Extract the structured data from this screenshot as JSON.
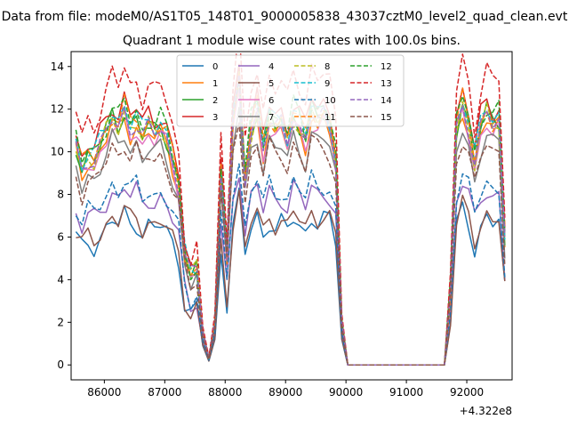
{
  "chart_data": {
    "type": "line",
    "suptitle": "Data from file: modeM0/AS1T05_148T01_9000005838_43037cztM0_level2_quad_clean.evt",
    "title": "Quadrant 1 module wise count rates with 100.0s bins.",
    "xlabel": "",
    "ylabel": "",
    "x_offset_label": "+4.322e8",
    "xlim": [
      85450,
      92750
    ],
    "ylim": [
      -0.7,
      14.7
    ],
    "xticks": [
      86000,
      87000,
      88000,
      89000,
      90000,
      91000,
      92000
    ],
    "xtick_labels": [
      "86000",
      "87000",
      "88000",
      "89000",
      "90000",
      "91000",
      "92000"
    ],
    "yticks": [
      0,
      2,
      4,
      6,
      8,
      10,
      12,
      14
    ],
    "ytick_labels": [
      "0",
      "2",
      "4",
      "6",
      "8",
      "10",
      "12",
      "14"
    ],
    "grid": false,
    "legend_position": "top-center",
    "legend_columns": 4,
    "x": [
      85530,
      85630,
      85730,
      85830,
      85930,
      86030,
      86130,
      86230,
      86330,
      86430,
      86530,
      86630,
      86730,
      86830,
      86930,
      87030,
      87130,
      87230,
      87330,
      87430,
      87530,
      87630,
      87730,
      87830,
      87930,
      88030,
      88130,
      88230,
      88330,
      88430,
      88530,
      88630,
      88730,
      88830,
      88930,
      89030,
      89130,
      89230,
      89330,
      89430,
      89530,
      89630,
      89730,
      89830,
      89930,
      90030,
      90130,
      90230,
      90330,
      90430,
      90530,
      90630,
      90730,
      90830,
      90930,
      91030,
      91130,
      91230,
      91330,
      91430,
      91530,
      91630,
      91730,
      91830,
      91930,
      92030,
      92130,
      92230,
      92330,
      92430,
      92530,
      92630
    ],
    "base_profile": [
      1.0,
      0.9,
      0.96,
      0.94,
      1.0,
      1.06,
      1.13,
      1.09,
      1.17,
      1.09,
      1.12,
      1.04,
      1.09,
      1.06,
      1.09,
      1.04,
      0.94,
      0.83,
      0.5,
      0.4,
      0.44,
      0.15,
      0.03,
      0.2,
      0.9,
      0.5,
      1.1,
      1.3,
      0.85,
      1.08,
      1.17,
      1.0,
      1.13,
      1.08,
      1.1,
      1.03,
      1.15,
      1.1,
      1.03,
      1.16,
      1.12,
      1.14,
      1.1,
      0.95,
      0.2,
      0.0,
      0.0,
      0.0,
      0.0,
      0.0,
      0.0,
      0.0,
      0.0,
      0.0,
      0.0,
      0.0,
      0.0,
      0.0,
      0.0,
      0.0,
      0.0,
      0.0,
      0.35,
      1.08,
      1.2,
      1.1,
      0.93,
      1.08,
      1.15,
      1.1,
      1.12,
      0.58
    ],
    "series": [
      {
        "name": "0",
        "color": "#1f77b4",
        "dashed": false,
        "level": 6.0
      },
      {
        "name": "1",
        "color": "#ff7f0e",
        "dashed": false,
        "level": 10.0
      },
      {
        "name": "2",
        "color": "#2ca02c",
        "dashed": false,
        "level": 10.3
      },
      {
        "name": "3",
        "color": "#d62728",
        "dashed": false,
        "level": 10.8
      },
      {
        "name": "4",
        "color": "#9467bd",
        "dashed": false,
        "level": 7.2
      },
      {
        "name": "5",
        "color": "#8c564b",
        "dashed": false,
        "level": 6.2
      },
      {
        "name": "6",
        "color": "#e377c2",
        "dashed": false,
        "level": 9.9
      },
      {
        "name": "7",
        "color": "#7f7f7f",
        "dashed": false,
        "level": 9.3
      },
      {
        "name": "8",
        "color": "#bcbd22",
        "dashed": true,
        "level": 10.2
      },
      {
        "name": "9",
        "color": "#17becf",
        "dashed": true,
        "level": 10.5
      },
      {
        "name": "10",
        "color": "#1f77b4",
        "dashed": true,
        "level": 7.5
      },
      {
        "name": "11",
        "color": "#ff7f0e",
        "dashed": true,
        "level": 10.4
      },
      {
        "name": "12",
        "color": "#2ca02c",
        "dashed": true,
        "level": 10.6
      },
      {
        "name": "13",
        "color": "#d62728",
        "dashed": true,
        "level": 12.0
      },
      {
        "name": "14",
        "color": "#9467bd",
        "dashed": true,
        "level": 10.2
      },
      {
        "name": "15",
        "color": "#8c564b",
        "dashed": true,
        "level": 9.0
      }
    ]
  }
}
